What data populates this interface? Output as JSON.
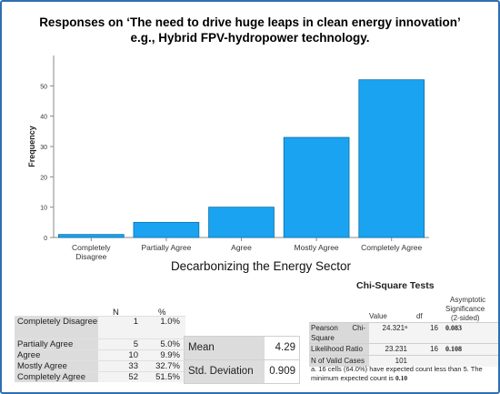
{
  "title_line1": "Responses on ‘The need to drive huge leaps in clean energy innovation’",
  "title_line2": "e.g., Hybrid FPV-hydropower technology.",
  "colors": {
    "bar": "#1aa3f0",
    "bar_stroke": "#0b6fa8",
    "frame": "#2e6fb0"
  },
  "chart_data": {
    "type": "bar",
    "categories": [
      "Completely Disagree",
      "Partially Agree",
      "Agree",
      "Mostly Agree",
      "Completely Agree"
    ],
    "values": [
      1,
      5,
      10,
      33,
      52
    ],
    "title": "",
    "xlabel": "Decarbonizing the Energy Sector",
    "ylabel": "Frequency",
    "ylim": [
      0,
      60
    ],
    "yticks": [
      0,
      10,
      20,
      30,
      40,
      50
    ],
    "grid": false
  },
  "frequency_table": {
    "headers": {
      "n": "N",
      "percent": "%"
    },
    "rows": [
      {
        "label": "Completely Disagree",
        "n": "1",
        "percent": "1.0%"
      },
      {
        "label": "Partially Agree",
        "n": "5",
        "percent": "5.0%"
      },
      {
        "label": "Agree",
        "n": "10",
        "percent": "9.9%"
      },
      {
        "label": "Mostly Agree",
        "n": "33",
        "percent": "32.7%"
      },
      {
        "label": "Completely Agree",
        "n": "52",
        "percent": "51.5%"
      }
    ]
  },
  "stats": {
    "mean_label": "Mean",
    "mean_value": "4.29",
    "sd_label": "Std. Deviation",
    "sd_value": "0.909"
  },
  "chi_square": {
    "title": "Chi-Square Tests",
    "col_value": "Value",
    "col_df": "df",
    "col_sig_1": "Asymptotic",
    "col_sig_2": "Significance",
    "col_sig_3": "(2-sided)",
    "rows": [
      {
        "label_1": "Pearson",
        "label_2": "Chi-",
        "label_3": "Square",
        "value": "24.321ᵃ",
        "df": "16",
        "sig": "0.083"
      },
      {
        "label_1": "Likelihood Ratio",
        "value": "23.231",
        "df": "16",
        "sig": "0.108"
      },
      {
        "label_1": "N of Valid Cases",
        "value": "101",
        "df": "",
        "sig": ""
      }
    ],
    "note_1": "a. 16 cells (64.0%) have expected count less than 5. The",
    "note_2": "minimum expected count is",
    "note_2_value": "0.10"
  }
}
